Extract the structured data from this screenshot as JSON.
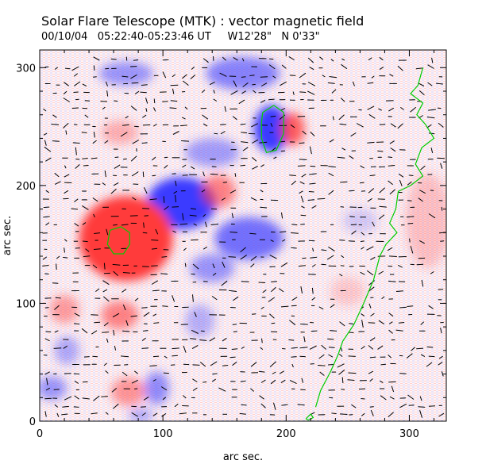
{
  "header": {
    "title": "Solar Flare Telescope (MTK) : vector magnetic field",
    "subtitle": "00/10/04   05:22:40-05:23:46 UT     W12'28\"   N 0'33\""
  },
  "axes": {
    "xlabel": "arc sec.",
    "ylabel": "arc sec.",
    "xlim": [
      0,
      330
    ],
    "ylim": [
      0,
      315
    ],
    "xticks": [
      0,
      100,
      200,
      300
    ],
    "yticks": [
      0,
      100,
      200,
      300
    ]
  },
  "colors": {
    "positive": "#ff3b3b",
    "negative": "#3b3bff",
    "contour": "#00cc00",
    "vector": "#000000"
  },
  "blobs": [
    {
      "pol": "neg",
      "x": 70,
      "y": 295,
      "rx": 22,
      "ry": 10,
      "s": 0.5
    },
    {
      "pol": "neg",
      "x": 165,
      "y": 295,
      "rx": 30,
      "ry": 14,
      "s": 0.6
    },
    {
      "pol": "neg",
      "x": 188,
      "y": 248,
      "rx": 14,
      "ry": 20,
      "s": 1.0
    },
    {
      "pol": "pos",
      "x": 205,
      "y": 248,
      "rx": 10,
      "ry": 14,
      "s": 0.8
    },
    {
      "pol": "pos",
      "x": 65,
      "y": 245,
      "rx": 15,
      "ry": 10,
      "s": 0.35
    },
    {
      "pol": "neg",
      "x": 140,
      "y": 228,
      "rx": 22,
      "ry": 12,
      "s": 0.45
    },
    {
      "pol": "neg",
      "x": 115,
      "y": 185,
      "rx": 28,
      "ry": 22,
      "s": 1.0
    },
    {
      "pol": "pos",
      "x": 70,
      "y": 155,
      "rx": 38,
      "ry": 36,
      "s": 1.0
    },
    {
      "pol": "pos",
      "x": 145,
      "y": 195,
      "rx": 14,
      "ry": 14,
      "s": 0.6
    },
    {
      "pol": "neg",
      "x": 170,
      "y": 155,
      "rx": 28,
      "ry": 18,
      "s": 0.7
    },
    {
      "pol": "neg",
      "x": 140,
      "y": 130,
      "rx": 18,
      "ry": 12,
      "s": 0.5
    },
    {
      "pol": "pos",
      "x": 65,
      "y": 90,
      "rx": 15,
      "ry": 12,
      "s": 0.6
    },
    {
      "pol": "pos",
      "x": 20,
      "y": 95,
      "rx": 12,
      "ry": 12,
      "s": 0.45
    },
    {
      "pol": "neg",
      "x": 130,
      "y": 85,
      "rx": 12,
      "ry": 14,
      "s": 0.35
    },
    {
      "pol": "neg",
      "x": 22,
      "y": 60,
      "rx": 10,
      "ry": 12,
      "s": 0.4
    },
    {
      "pol": "neg",
      "x": 10,
      "y": 28,
      "rx": 12,
      "ry": 10,
      "s": 0.5
    },
    {
      "pol": "pos",
      "x": 72,
      "y": 25,
      "rx": 14,
      "ry": 12,
      "s": 0.5
    },
    {
      "pol": "neg",
      "x": 95,
      "y": 28,
      "rx": 10,
      "ry": 14,
      "s": 0.55
    },
    {
      "pol": "neg",
      "x": 82,
      "y": 5,
      "rx": 10,
      "ry": 6,
      "s": 0.4
    },
    {
      "pol": "pos",
      "x": 315,
      "y": 170,
      "rx": 18,
      "ry": 40,
      "s": 0.25
    },
    {
      "pol": "pos",
      "x": 250,
      "y": 110,
      "rx": 14,
      "ry": 12,
      "s": 0.2
    },
    {
      "pol": "neg",
      "x": 260,
      "y": 170,
      "rx": 14,
      "ry": 10,
      "s": 0.2
    }
  ],
  "contours": [
    {
      "name": "neutral-line-main",
      "points": [
        [
          311,
          300
        ],
        [
          307,
          285
        ],
        [
          301,
          278
        ],
        [
          311,
          270
        ],
        [
          306,
          260
        ],
        [
          313,
          252
        ],
        [
          320,
          240
        ],
        [
          310,
          232
        ],
        [
          305,
          218
        ],
        [
          311,
          208
        ],
        [
          301,
          200
        ],
        [
          291,
          195
        ],
        [
          289,
          180
        ],
        [
          284,
          168
        ],
        [
          290,
          160
        ],
        [
          281,
          150
        ],
        [
          276,
          140
        ],
        [
          271,
          120
        ],
        [
          263,
          100
        ],
        [
          255,
          82
        ],
        [
          246,
          68
        ],
        [
          242,
          56
        ],
        [
          236,
          42
        ],
        [
          228,
          26
        ],
        [
          224,
          12
        ]
      ]
    },
    {
      "name": "polarity-contour-upper",
      "points": [
        [
          181,
          262
        ],
        [
          190,
          268
        ],
        [
          198,
          262
        ],
        [
          198,
          244
        ],
        [
          192,
          230
        ],
        [
          184,
          228
        ],
        [
          180,
          240
        ],
        [
          180,
          254
        ],
        [
          181,
          262
        ]
      ]
    },
    {
      "name": "polarity-contour-left",
      "points": [
        [
          57,
          162
        ],
        [
          66,
          165
        ],
        [
          73,
          160
        ],
        [
          73,
          150
        ],
        [
          68,
          142
        ],
        [
          60,
          142
        ],
        [
          55,
          150
        ],
        [
          57,
          162
        ]
      ]
    },
    {
      "name": "contour-small-bottom",
      "points": [
        [
          216,
          2
        ],
        [
          220,
          6
        ],
        [
          222,
          3
        ],
        [
          218,
          1
        ],
        [
          216,
          2
        ]
      ]
    }
  ]
}
